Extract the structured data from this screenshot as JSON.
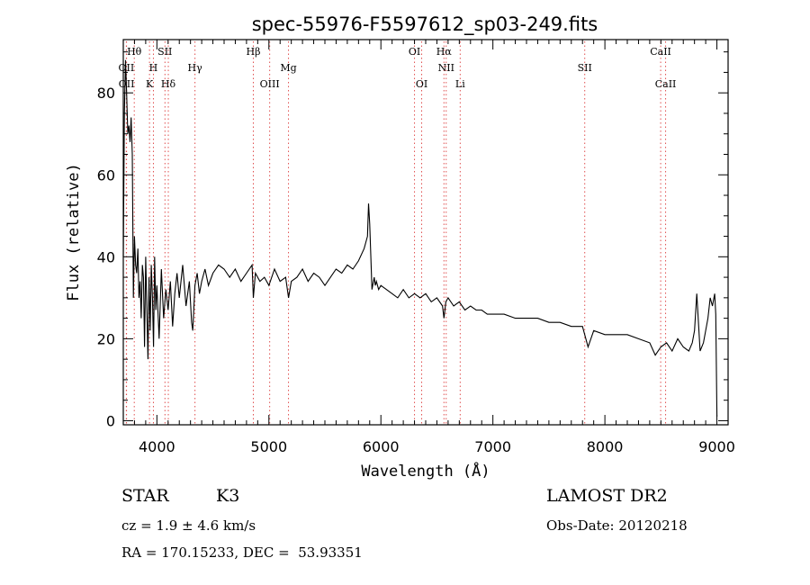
{
  "chart_data": {
    "type": "line",
    "title": "spec-55976-F5597612_sp03-249.fits",
    "xlabel": "Wavelength (Å)",
    "ylabel": "Flux (relative)",
    "xlim": [
      3700,
      9100
    ],
    "ylim": [
      -1,
      93
    ],
    "xticks": [
      4000,
      5000,
      6000,
      7000,
      8000,
      9000
    ],
    "yticks": [
      0,
      20,
      40,
      60,
      80
    ],
    "grid": false,
    "series": [
      {
        "x": [
          3700,
          3710,
          3720,
          3730,
          3740,
          3750,
          3760,
          3770,
          3780,
          3790,
          3800,
          3810,
          3820,
          3830,
          3840,
          3850,
          3860,
          3870,
          3880,
          3890,
          3900,
          3910,
          3920,
          3930,
          3940,
          3950,
          3960,
          3970,
          3980,
          3990,
          4000,
          4020,
          4040,
          4060,
          4080,
          4100,
          4120,
          4140,
          4160,
          4180,
          4200,
          4230,
          4260,
          4290,
          4310,
          4320,
          4340,
          4360,
          4380,
          4400,
          4430,
          4460,
          4500,
          4550,
          4600,
          4650,
          4700,
          4750,
          4800,
          4850,
          4861,
          4880,
          4920,
          4960,
          5000,
          5050,
          5100,
          5150,
          5175,
          5200,
          5250,
          5300,
          5350,
          5400,
          5450,
          5500,
          5550,
          5600,
          5650,
          5700,
          5750,
          5800,
          5850,
          5880,
          5890,
          5900,
          5920,
          5940,
          5950,
          5960,
          5980,
          6000,
          6050,
          6100,
          6150,
          6200,
          6250,
          6300,
          6350,
          6400,
          6450,
          6500,
          6550,
          6563,
          6580,
          6600,
          6650,
          6700,
          6750,
          6800,
          6850,
          6900,
          6950,
          7000,
          7100,
          7200,
          7300,
          7400,
          7500,
          7600,
          7700,
          7800,
          7850,
          7900,
          8000,
          8100,
          8200,
          8300,
          8400,
          8450,
          8500,
          8550,
          8600,
          8650,
          8700,
          8750,
          8780,
          8800,
          8820,
          8850,
          8880,
          8900,
          8920,
          8940,
          8960,
          8980,
          8990,
          9000
        ],
        "values": [
          40,
          75,
          88,
          80,
          70,
          72,
          68,
          74,
          65,
          30,
          45,
          38,
          36,
          42,
          30,
          34,
          25,
          38,
          35,
          18,
          40,
          28,
          15,
          35,
          22,
          38,
          30,
          18,
          40,
          27,
          33,
          20,
          37,
          25,
          32,
          27,
          34,
          23,
          31,
          36,
          30,
          38,
          28,
          34,
          24,
          22,
          33,
          36,
          31,
          34,
          37,
          33,
          36,
          38,
          37,
          35,
          37,
          34,
          36,
          38,
          30,
          36,
          34,
          35,
          33,
          37,
          34,
          35,
          30,
          34,
          35,
          37,
          34,
          36,
          35,
          33,
          35,
          37,
          36,
          38,
          37,
          39,
          42,
          45,
          53,
          48,
          32,
          35,
          33,
          34,
          32,
          33,
          32,
          31,
          30,
          32,
          30,
          31,
          30,
          31,
          29,
          30,
          28,
          25,
          29,
          30,
          28,
          29,
          27,
          28,
          27,
          27,
          26,
          26,
          26,
          25,
          25,
          25,
          24,
          24,
          23,
          23,
          18,
          22,
          21,
          21,
          21,
          20,
          19,
          16,
          18,
          19,
          17,
          20,
          18,
          17,
          19,
          22,
          31,
          17,
          19,
          22,
          25,
          30,
          28,
          31,
          26,
          1
        ]
      }
    ],
    "lines": [
      {
        "label": "Hθ",
        "x": 3798,
        "row": 1
      },
      {
        "label": "OII",
        "x": 3727,
        "row": 2
      },
      {
        "label": "OII",
        "x": 3729,
        "row": 3
      },
      {
        "label": "SII",
        "x": 4072,
        "row": 1
      },
      {
        "label": "H",
        "x": 3969,
        "row": 2
      },
      {
        "label": "K",
        "x": 3934,
        "row": 3
      },
      {
        "label": "Hδ",
        "x": 4102,
        "row": 3
      },
      {
        "label": "Hγ",
        "x": 4340,
        "row": 2
      },
      {
        "label": "Hβ",
        "x": 4861,
        "row": 1
      },
      {
        "label": "OIII",
        "x": 5007,
        "row": 3
      },
      {
        "label": "Mg",
        "x": 5175,
        "row": 2
      },
      {
        "label": "OI",
        "x": 6300,
        "row": 1
      },
      {
        "label": "OI",
        "x": 6364,
        "row": 3
      },
      {
        "label": "Hα",
        "x": 6563,
        "row": 1
      },
      {
        "label": "NII",
        "x": 6583,
        "row": 2
      },
      {
        "label": "Li",
        "x": 6708,
        "row": 3
      },
      {
        "label": "SII",
        "x": 7820,
        "row": 2
      },
      {
        "label": "CaII",
        "x": 8498,
        "row": 1
      },
      {
        "label": "CaII",
        "x": 8542,
        "row": 3
      }
    ]
  },
  "info": {
    "class": "STAR",
    "subclass": "K3",
    "survey": "LAMOST DR2",
    "cz": "cz = 1.9 ± 4.6 km/s",
    "obs_date": "Obs-Date: 20120218",
    "coords": "RA = 170.15233, DEC =  53.93351"
  },
  "colors": {
    "spectrum": "#000000",
    "line_marker": "#e05050",
    "axis": "#000000"
  }
}
